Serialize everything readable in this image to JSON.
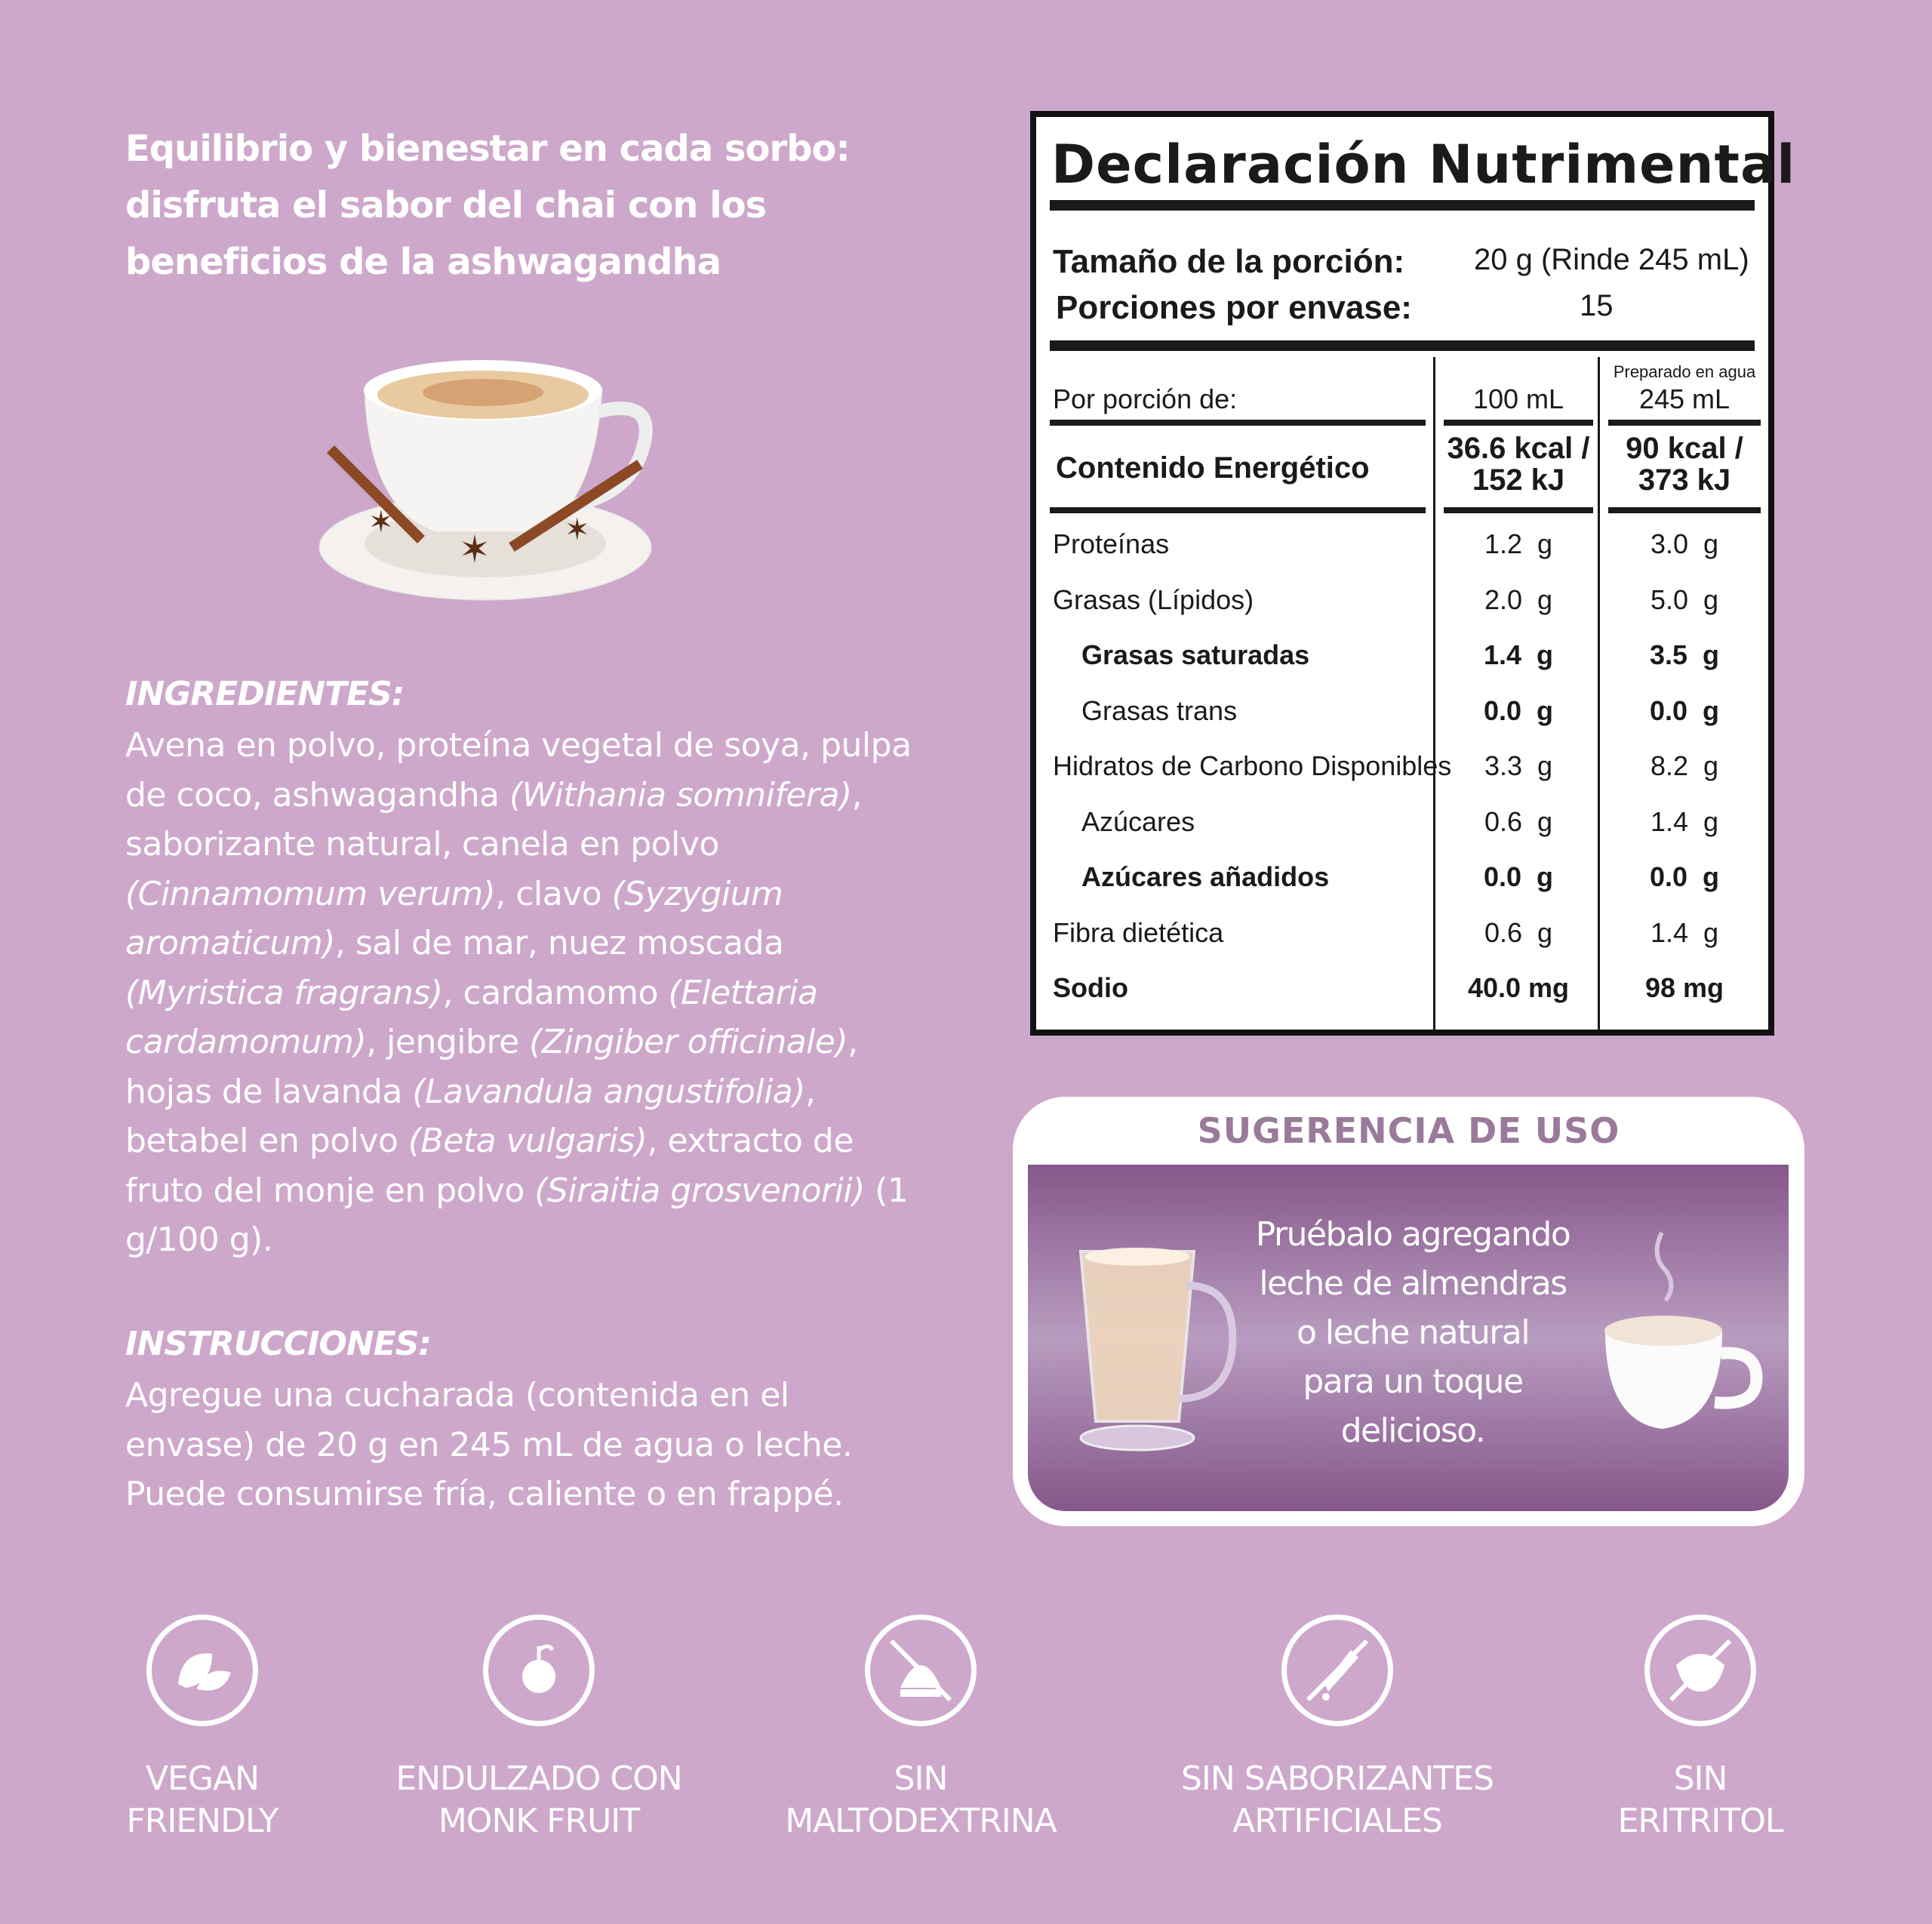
{
  "headline": "Equilibrio y bienestar en cada sorbo: disfruta el sabor del chai con los beneficios de la ashwagandha",
  "ingredients": {
    "title": "INGREDIENTES:",
    "parts": [
      [
        "Avena en polvo, proteína vegetal de soya, pulpa de coco, ashwagandha ",
        0
      ],
      [
        "(Withania somnifera)",
        1
      ],
      [
        ", saborizante natural, canela en polvo ",
        0
      ],
      [
        "(Cinnamomum verum)",
        1
      ],
      [
        ", clavo ",
        0
      ],
      [
        "(Syzygium aromaticum)",
        1
      ],
      [
        ", sal de mar, nuez moscada ",
        0
      ],
      [
        "(Myristica fragrans)",
        1
      ],
      [
        ", cardamomo ",
        0
      ],
      [
        "(Elettaria cardamomum)",
        1
      ],
      [
        ", jengibre ",
        0
      ],
      [
        "(Zingiber officinale)",
        1
      ],
      [
        ", hojas de lavanda ",
        0
      ],
      [
        "(Lavandula angustifolia)",
        1
      ],
      [
        ", betabel en polvo ",
        0
      ],
      [
        "(Beta vulgaris)",
        1
      ],
      [
        ", extracto de fruto del monje en polvo ",
        0
      ],
      [
        "(Siraitia grosvenorii)",
        1
      ],
      [
        " (1 g/100 g).",
        0
      ]
    ]
  },
  "instructions": {
    "title": "INSTRUCCIONES:",
    "text": "Agregue una cucharada (contenida en el envase) de 20 g en 245 mL de agua o leche. Puede consumirse fría, caliente o en frappé."
  },
  "nutrition": {
    "title": "Declaración Nutrimental",
    "serving_label": "Tamaño de la porción:",
    "serving_value": "20 g (Rinde 245 mL)",
    "servings_label": "Porciones por envase:",
    "servings_value": "15",
    "per_label": "Por porción de:",
    "col1": "100 mL",
    "col2_note": "Preparado en agua",
    "col2": "245 mL",
    "energy_label": "Contenido Energético",
    "energy_col1": [
      "36.6 kcal /",
      "152 kJ"
    ],
    "energy_col2": [
      "90 kcal /",
      "373 kJ"
    ],
    "rows": [
      {
        "label": "Proteínas",
        "v1": "1.2  g",
        "v2": "3.0  g",
        "bold": false,
        "indent": false
      },
      {
        "label": "Grasas (Lípidos)",
        "v1": "2.0  g",
        "v2": "5.0  g",
        "bold": false,
        "indent": false
      },
      {
        "label": "Grasas saturadas",
        "v1": "1.4  g",
        "v2": "3.5  g",
        "bold": true,
        "indent": true
      },
      {
        "label": "Grasas trans",
        "v1": "0.0  g",
        "v2": "0.0  g",
        "bold": false,
        "indent": true,
        "boldval": true
      },
      {
        "label": "Hidratos de Carbono Disponibles",
        "v1": "3.3  g",
        "v2": "8.2  g",
        "bold": false,
        "indent": false
      },
      {
        "label": "Azúcares",
        "v1": "0.6  g",
        "v2": "1.4  g",
        "bold": false,
        "indent": true
      },
      {
        "label": "Azúcares añadidos",
        "v1": "0.0  g",
        "v2": "0.0  g",
        "bold": true,
        "indent": true
      },
      {
        "label": "Fibra dietética",
        "v1": "0.6  g",
        "v2": "1.4  g",
        "bold": false,
        "indent": false
      },
      {
        "label": "Sodio",
        "v1": "40.0 mg",
        "v2": "98 mg",
        "bold": true,
        "indent": false
      }
    ]
  },
  "suggestion": {
    "title": "SUGERENCIA DE USO",
    "lines": [
      "Pruébalo agregando",
      "leche de almendras",
      "o leche natural",
      "para un toque",
      "delicioso."
    ]
  },
  "badges": [
    {
      "icon": "leaf-icon",
      "lines": [
        "VEGAN",
        "FRIENDLY"
      ]
    },
    {
      "icon": "monk-fruit-icon",
      "lines": [
        "ENDULZADO CON",
        "MONK FRUIT"
      ]
    },
    {
      "icon": "no-maltodextrin-icon",
      "lines": [
        "SIN",
        "MALTODEXTRINA"
      ]
    },
    {
      "icon": "no-artificial-flavor-icon",
      "lines": [
        "SIN SABORIZANTES",
        "ARTIFICIALES"
      ]
    },
    {
      "icon": "no-erythritol-icon",
      "lines": [
        "SIN",
        "ERITRITOL"
      ]
    }
  ],
  "colors": {
    "background": "#cda8cb",
    "panel": "#86578a",
    "title": "#9a7a9b"
  }
}
